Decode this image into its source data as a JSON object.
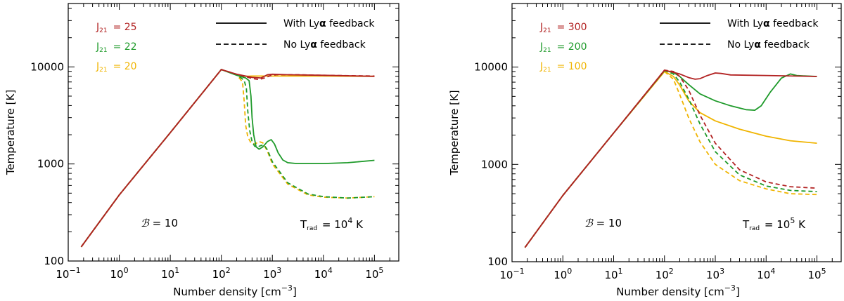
{
  "figure": {
    "xlabel": "Number density [cm",
    "xlabel_exp": "−3",
    "xlabel_tail": "]",
    "ylabel": "Temperature [K]"
  },
  "chart_data": [
    {
      "type": "line",
      "xscale": "log",
      "yscale": "log",
      "xlim": [
        0.1,
        300000
      ],
      "ylim": [
        100,
        45000
      ],
      "xlabel": "Number density [cm^-3]",
      "ylabel": "Temperature [K]",
      "xticks": [
        {
          "value": 0.1,
          "base": "10",
          "exp": "−1"
        },
        {
          "value": 1,
          "base": "10",
          "exp": "0"
        },
        {
          "value": 10,
          "base": "10",
          "exp": "1"
        },
        {
          "value": 100,
          "base": "10",
          "exp": "2"
        },
        {
          "value": 1000,
          "base": "10",
          "exp": "3"
        },
        {
          "value": 10000,
          "base": "10",
          "exp": "4"
        },
        {
          "value": 100000,
          "base": "10",
          "exp": "5"
        }
      ],
      "yticks": [
        {
          "value": 100,
          "label": "100"
        },
        {
          "value": 1000,
          "label": "1000"
        },
        {
          "value": 10000,
          "label": "10000"
        }
      ],
      "legend_style": [
        {
          "label_pre": "With Ly",
          "label_greek": "α",
          "label_post": " feedback",
          "dash": "solid"
        },
        {
          "label_pre": "No Ly",
          "label_greek": "α",
          "label_post": " feedback",
          "dash": "dashed"
        }
      ],
      "legend_series": [
        {
          "name": "J",
          "sub": "21",
          "value": "= 25",
          "color": "#b22222"
        },
        {
          "name": "J",
          "sub": "21",
          "value": "= 22",
          "color": "#1e9a2a"
        },
        {
          "name": "J",
          "sub": "21",
          "value": "= 20",
          "color": "#f0b400"
        }
      ],
      "annotation_b": {
        "symbol": "ℬ",
        "text": " = 10"
      },
      "annotation_t": {
        "pre": "T",
        "sub": "rad",
        "mid": " =  10",
        "exp": "4",
        "post": " K"
      },
      "series": [
        {
          "name": "J21=20 With Lyα feedback",
          "color": "#f0b400",
          "dash": "solid",
          "x": [
            0.18,
            1,
            10,
            100,
            200,
            300,
            400,
            1000,
            10000,
            100000
          ],
          "y": [
            140,
            480,
            2100,
            9400,
            8300,
            8000,
            8050,
            8050,
            8050,
            8000
          ]
        },
        {
          "name": "J21=20 No Lyα feedback",
          "color": "#f0b400",
          "dash": "dashed",
          "x": [
            0.18,
            1,
            10,
            100,
            200,
            260,
            280,
            300,
            330,
            380,
            450,
            550,
            650,
            800,
            1000,
            2000,
            5000,
            10000,
            30000,
            100000
          ],
          "y": [
            140,
            480,
            2100,
            9400,
            8300,
            7000,
            4500,
            2500,
            1900,
            1650,
            1600,
            1700,
            1650,
            1350,
            1000,
            620,
            480,
            455,
            445,
            460
          ]
        },
        {
          "name": "J21=22 With Lyα feedback",
          "color": "#1e9a2a",
          "dash": "solid",
          "x": [
            0.18,
            1,
            10,
            100,
            200,
            300,
            350,
            380,
            400,
            430,
            480,
            550,
            650,
            800,
            950,
            1100,
            1300,
            1600,
            2000,
            3000,
            10000,
            30000,
            100000
          ],
          "y": [
            140,
            480,
            2100,
            9400,
            8200,
            7700,
            7200,
            5000,
            3000,
            2000,
            1500,
            1420,
            1500,
            1700,
            1780,
            1600,
            1300,
            1100,
            1030,
            1010,
            1010,
            1030,
            1090
          ]
        },
        {
          "name": "J21=22 No Lyα feedback",
          "color": "#1e9a2a",
          "dash": "dashed",
          "x": [
            0.18,
            1,
            10,
            100,
            200,
            280,
            310,
            330,
            360,
            400,
            450,
            520,
            600,
            700,
            800,
            1000,
            2000,
            5000,
            10000,
            30000,
            100000
          ],
          "y": [
            140,
            480,
            2100,
            9400,
            8300,
            7300,
            6000,
            3500,
            2200,
            1700,
            1520,
            1500,
            1550,
            1550,
            1400,
            1050,
            640,
            490,
            460,
            445,
            460
          ]
        },
        {
          "name": "J21=25 With Lyα feedback",
          "color": "#b22222",
          "dash": "solid",
          "x": [
            0.18,
            1,
            10,
            100,
            200,
            400,
            600,
            800,
            1000,
            2000,
            10000,
            100000
          ],
          "y": [
            140,
            480,
            2100,
            9400,
            8400,
            7800,
            7700,
            8300,
            8400,
            8300,
            8200,
            8000
          ]
        },
        {
          "name": "J21=25 No Lyα feedback",
          "color": "#b22222",
          "dash": "dashed",
          "x": [
            0.18,
            1,
            10,
            100,
            200,
            400,
            550,
            700,
            900,
            1200,
            3000,
            10000,
            100000
          ],
          "y": [
            140,
            480,
            2100,
            9400,
            8400,
            7600,
            7400,
            7700,
            8100,
            8300,
            8300,
            8200,
            8050
          ]
        }
      ]
    },
    {
      "type": "line",
      "xscale": "log",
      "yscale": "log",
      "xlim": [
        0.1,
        300000
      ],
      "ylim": [
        100,
        45000
      ],
      "xlabel": "Number density [cm^-3]",
      "ylabel": "Temperature [K]",
      "xticks": [
        {
          "value": 0.1,
          "base": "10",
          "exp": "−1"
        },
        {
          "value": 1,
          "base": "10",
          "exp": "0"
        },
        {
          "value": 10,
          "base": "10",
          "exp": "1"
        },
        {
          "value": 100,
          "base": "10",
          "exp": "2"
        },
        {
          "value": 1000,
          "base": "10",
          "exp": "3"
        },
        {
          "value": 10000,
          "base": "10",
          "exp": "4"
        },
        {
          "value": 100000,
          "base": "10",
          "exp": "5"
        }
      ],
      "yticks": [
        {
          "value": 100,
          "label": "100"
        },
        {
          "value": 1000,
          "label": "1000"
        },
        {
          "value": 10000,
          "label": "10000"
        }
      ],
      "legend_style": [
        {
          "label_pre": "With Ly",
          "label_greek": "α",
          "label_post": " feedback",
          "dash": "solid"
        },
        {
          "label_pre": "No Ly",
          "label_greek": "α",
          "label_post": " feedback",
          "dash": "dashed"
        }
      ],
      "legend_series": [
        {
          "name": "J",
          "sub": "21",
          "value": "= 300",
          "color": "#b22222"
        },
        {
          "name": "J",
          "sub": "21",
          "value": "= 200",
          "color": "#1e9a2a"
        },
        {
          "name": "J",
          "sub": "21",
          "value": "= 100",
          "color": "#f0b400"
        }
      ],
      "annotation_b": {
        "symbol": "ℬ",
        "text": " = 10"
      },
      "annotation_t": {
        "pre": "T",
        "sub": "rad",
        "mid": " =  10",
        "exp": "5",
        "post": " K"
      },
      "series": [
        {
          "name": "J21=100 With Lyα feedback",
          "color": "#f0b400",
          "dash": "solid",
          "x": [
            0.18,
            1,
            10,
            100,
            150,
            200,
            300,
            500,
            1000,
            3000,
            10000,
            30000,
            100000
          ],
          "y": [
            140,
            480,
            2100,
            9000,
            8000,
            6500,
            4500,
            3400,
            2800,
            2300,
            1950,
            1750,
            1650
          ]
        },
        {
          "name": "J21=100 No Lyα feedback",
          "color": "#f0b400",
          "dash": "dashed",
          "x": [
            0.18,
            1,
            10,
            100,
            150,
            200,
            300,
            500,
            1000,
            3000,
            10000,
            30000,
            100000
          ],
          "y": [
            140,
            480,
            2100,
            9000,
            7500,
            5200,
            3000,
            1700,
            1000,
            680,
            560,
            500,
            490
          ]
        },
        {
          "name": "J21=200 With Lyα feedback",
          "color": "#1e9a2a",
          "dash": "solid",
          "x": [
            0.18,
            1,
            10,
            100,
            150,
            200,
            300,
            500,
            1000,
            2000,
            4000,
            6000,
            8000,
            12000,
            20000,
            30000,
            40000,
            60000,
            100000
          ],
          "y": [
            140,
            480,
            2100,
            9200,
            8800,
            8000,
            6600,
            5300,
            4500,
            4000,
            3650,
            3600,
            4000,
            5500,
            7700,
            8500,
            8200,
            8100,
            8000
          ]
        },
        {
          "name": "J21=200 No Lyα feedback",
          "color": "#1e9a2a",
          "dash": "dashed",
          "x": [
            0.18,
            1,
            10,
            100,
            150,
            200,
            300,
            500,
            1000,
            3000,
            10000,
            30000,
            100000
          ],
          "y": [
            140,
            480,
            2100,
            9200,
            8500,
            7000,
            4700,
            2600,
            1350,
            780,
            600,
            540,
            525
          ]
        },
        {
          "name": "J21=300 With Lyα feedback",
          "color": "#b22222",
          "dash": "solid",
          "x": [
            0.18,
            1,
            10,
            100,
            200,
            300,
            400,
            500,
            700,
            1000,
            1300,
            2000,
            10000,
            100000
          ],
          "y": [
            140,
            480,
            2100,
            9300,
            8500,
            7800,
            7500,
            7600,
            8200,
            8700,
            8600,
            8300,
            8200,
            8000
          ]
        },
        {
          "name": "J21=300 No Lyα feedback",
          "color": "#b22222",
          "dash": "dashed",
          "x": [
            0.18,
            1,
            10,
            100,
            150,
            200,
            300,
            500,
            1000,
            3000,
            10000,
            30000,
            100000
          ],
          "y": [
            140,
            480,
            2100,
            9300,
            9000,
            8000,
            5800,
            3200,
            1650,
            880,
            660,
            590,
            570
          ]
        }
      ]
    }
  ]
}
